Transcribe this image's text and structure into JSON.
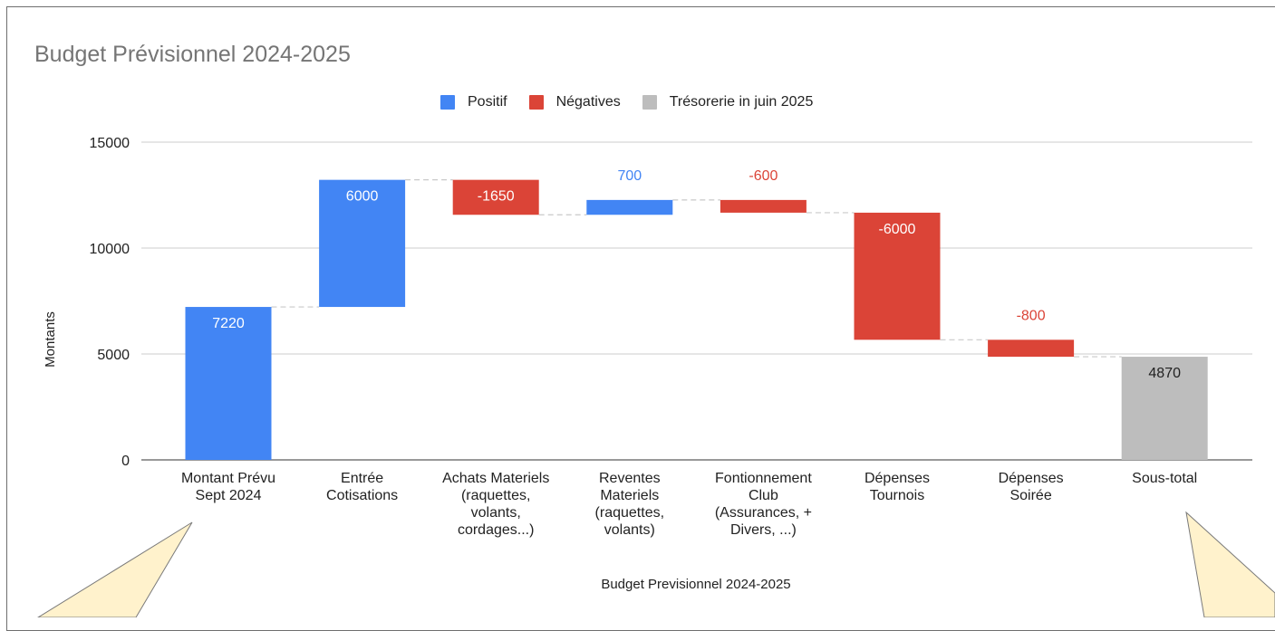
{
  "chart_data": {
    "type": "waterfall",
    "title": "Budget Prévisionnel 2024-2025",
    "xlabel": "Budget Previsionnel 2024-2025",
    "ylabel": "Montants",
    "ylim": [
      0,
      15000
    ],
    "yticks": [
      0,
      5000,
      10000,
      15000
    ],
    "grid": true,
    "legend_position": "top",
    "legend": [
      {
        "name": "Positif",
        "color": "#4285f4"
      },
      {
        "name": "Négatives",
        "color": "#db4437"
      },
      {
        "name": "Trésorerie in juin 2025",
        "color": "#bdbdbd"
      }
    ],
    "categories": [
      [
        "Montant Prévu",
        "Sept 2024"
      ],
      [
        "Entrée",
        "Cotisations"
      ],
      [
        "Achats Materiels",
        "(raquettes,",
        "volants,",
        "cordages...)"
      ],
      [
        "Reventes",
        "Materiels",
        "(raquettes,",
        "volants)"
      ],
      [
        "Fontionnement",
        "Club",
        "(Assurances, +",
        "Divers, ...)"
      ],
      [
        "Dépenses",
        "Tournois"
      ],
      [
        "Dépenses",
        "Soirée"
      ],
      [
        "Sous-total"
      ]
    ],
    "steps": [
      {
        "value": 7220,
        "kind": "positive",
        "label": "7220"
      },
      {
        "value": 6000,
        "kind": "positive",
        "label": "6000"
      },
      {
        "value": -1650,
        "kind": "negative",
        "label": "-1650"
      },
      {
        "value": 700,
        "kind": "positive",
        "label": "700"
      },
      {
        "value": -600,
        "kind": "negative",
        "label": "-600"
      },
      {
        "value": -6000,
        "kind": "negative",
        "label": "-6000"
      },
      {
        "value": -800,
        "kind": "negative",
        "label": "-800"
      },
      {
        "value": 4870,
        "kind": "total",
        "label": "4870"
      }
    ],
    "colors": {
      "positive": "#4285f4",
      "negative": "#db4437",
      "total": "#bdbdbd",
      "grid": "#cccccc",
      "connector": "#bdbdbd",
      "callout": "#fff2cc"
    }
  }
}
